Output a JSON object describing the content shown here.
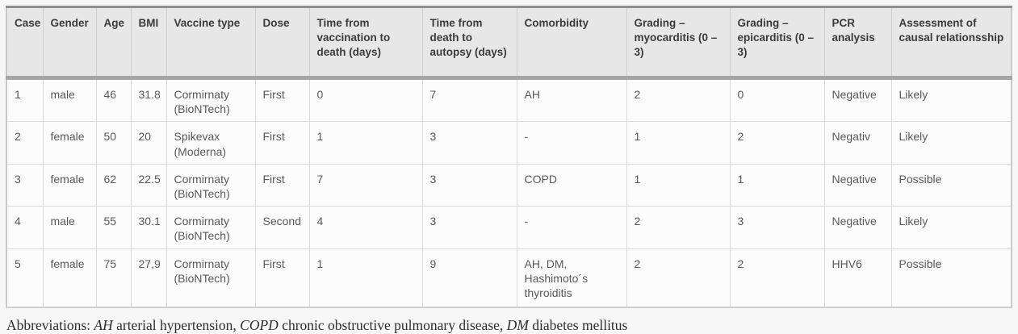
{
  "table": {
    "columns": [
      {
        "key": "case",
        "label": "Case"
      },
      {
        "key": "gender",
        "label": "Gender"
      },
      {
        "key": "age",
        "label": "Age"
      },
      {
        "key": "bmi",
        "label": "BMI"
      },
      {
        "key": "vaccine",
        "label": "Vaccine type"
      },
      {
        "key": "dose",
        "label": "Dose"
      },
      {
        "key": "time-vacc-death",
        "label": "Time from vaccination to death (days)"
      },
      {
        "key": "time-death-autopsy",
        "label": "Time from death to autopsy (days)"
      },
      {
        "key": "comorbidity",
        "label": "Comorbidity"
      },
      {
        "key": "grading-myocarditis",
        "label": "Grading – myocarditis (0 – 3)"
      },
      {
        "key": "grading-epicarditis",
        "label": "Grading – epicarditis (0 – 3)"
      },
      {
        "key": "pcr",
        "label": "PCR analysis"
      },
      {
        "key": "assessment",
        "label": "Assessment of causal relationsship"
      }
    ],
    "rows": [
      [
        "1",
        "male",
        "46",
        "31.8",
        "Cormirnaty (BioNTech)",
        "First",
        "0",
        "7",
        "AH",
        "2",
        "0",
        "Negative",
        "Likely"
      ],
      [
        "2",
        "female",
        "50",
        "20",
        "Spikevax (Moderna)",
        "First",
        "1",
        "3",
        "-",
        "1",
        "2",
        "Negativ",
        "Likely"
      ],
      [
        "3",
        "female",
        "62",
        "22.5",
        "Cormirnaty (BioNTech)",
        "First",
        "7",
        "3",
        "COPD",
        "1",
        "1",
        "Negative",
        "Possible"
      ],
      [
        "4",
        "male",
        "55",
        "30.1",
        "Cormirnaty (BioNTech)",
        "Second",
        "4",
        "3",
        "-",
        "2",
        "3",
        "Negative",
        "Likely"
      ],
      [
        "5",
        "female",
        "75",
        "27,9",
        "Cormirnaty (BioNTech)",
        "First",
        "1",
        "9",
        "AH, DM, Hashimoto´s thyroiditis",
        "2",
        "2",
        "HHV6",
        "Possible"
      ]
    ]
  },
  "footnote": {
    "prefix": "Abbreviations: ",
    "parts": [
      {
        "abbr": "AH",
        "text": " arterial hypertension, "
      },
      {
        "abbr": "COPD",
        "text": " chronic obstructive pulmonary disease, "
      },
      {
        "abbr": "DM",
        "text": " diabetes mellitus"
      }
    ]
  },
  "colors": {
    "page_background": "#f7f7f7",
    "header_background": "#e7e7e7",
    "header_divider": "#a5a5a5",
    "cell_background": "#fcfcfc",
    "grid_line": "#d9d9d9",
    "header_text": "#3b3b3b",
    "body_text": "#595959",
    "footnote_text": "#2e2e2e"
  }
}
